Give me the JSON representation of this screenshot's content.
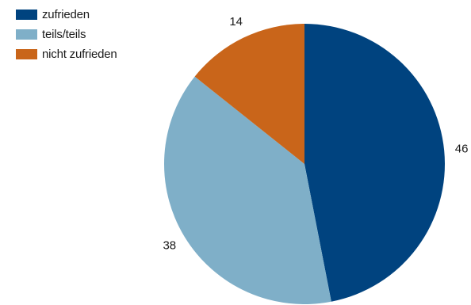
{
  "chart_data": {
    "type": "pie",
    "title": "",
    "categories": [
      "zufrieden",
      "teils/teils",
      "nicht zufrieden"
    ],
    "values": [
      46,
      38,
      14
    ],
    "colors": [
      "#00437f",
      "#7fafc8",
      "#c9651a"
    ],
    "data_labels": [
      "46",
      "38",
      "14"
    ],
    "start_angle": "12 o'clock",
    "direction": "clockwise",
    "legend": "top-left"
  }
}
